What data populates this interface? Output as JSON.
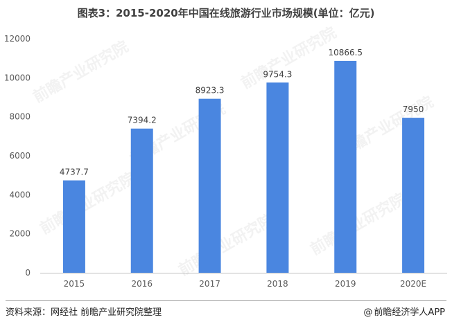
{
  "title": "图表3：2015-2020年中国在线旅游行业市场规模(单位：亿元)",
  "chart_data": {
    "type": "bar",
    "categories": [
      "2015",
      "2016",
      "2017",
      "2018",
      "2019",
      "2020E"
    ],
    "values": [
      4737.7,
      7394.2,
      8923.3,
      9754.3,
      10866.5,
      7950
    ],
    "value_labels": [
      "4737.7",
      "7394.2",
      "8923.3",
      "9754.3",
      "10866.5",
      "7950"
    ],
    "ylim": [
      0,
      12000
    ],
    "yticks": [
      0,
      2000,
      4000,
      6000,
      8000,
      10000,
      12000
    ],
    "grid": false,
    "bar_color": "#4a86e0"
  },
  "footer": {
    "source": "资料来源：网经社 前瞻产业研究院整理",
    "brand": "前瞻经济学人APP",
    "brand_symbol": "@"
  },
  "watermark": {
    "text": "前瞻产业研究院"
  }
}
